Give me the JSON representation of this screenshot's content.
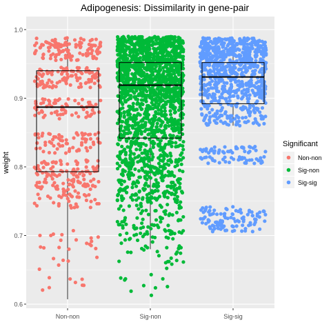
{
  "chart_data": {
    "type": "box",
    "title": "Adipogenesis: Dissimilarity in gene-pair",
    "xlabel": "",
    "ylabel": "weight",
    "ylim": [
      0.6,
      1.0
    ],
    "yticks": [
      0.6,
      0.7,
      0.8,
      0.9,
      1.0
    ],
    "yticklabels": [
      "0.6",
      "0.7",
      "0.8",
      "0.9",
      "1.0"
    ],
    "categories": [
      "Non-non",
      "Sig-non",
      "Sig-sig"
    ],
    "legend": {
      "title": "Significant",
      "position": "right",
      "entries": [
        "Non-non",
        "Sig-non",
        "Sig-sig"
      ]
    },
    "colors": {
      "Non-non": "#F8766D",
      "Sig-non": "#00BA38",
      "Sig-sig": "#619CFF",
      "panel": "#EBEBEB",
      "grid": "#FFFFFF"
    },
    "grid": true,
    "boxes": [
      {
        "name": "Non-non",
        "q1": 0.793,
        "median": 0.887,
        "q3": 0.94,
        "whisker_low": 0.607,
        "whisker_high": 0.987
      },
      {
        "name": "Sig-non",
        "q1": 0.842,
        "median": 0.919,
        "q3": 0.952,
        "whisker_low": 0.68,
        "whisker_high": 0.99
      },
      {
        "name": "Sig-sig",
        "q1": 0.892,
        "median": 0.931,
        "q3": 0.952,
        "whisker_low": 0.86,
        "whisker_high": 0.988
      }
    ],
    "jitter_points": [
      {
        "group": "Non-non",
        "bands": [
          {
            "y_min": 0.955,
            "y_max": 0.988,
            "count": 120
          },
          {
            "y_min": 0.915,
            "y_max": 0.945,
            "count": 100
          },
          {
            "y_min": 0.87,
            "y_max": 0.9,
            "count": 70
          },
          {
            "y_min": 0.82,
            "y_max": 0.85,
            "count": 70
          },
          {
            "y_min": 0.77,
            "y_max": 0.81,
            "count": 110
          },
          {
            "y_min": 0.74,
            "y_max": 0.77,
            "count": 45
          },
          {
            "y_min": 0.68,
            "y_max": 0.71,
            "count": 18
          },
          {
            "y_min": 0.61,
            "y_max": 0.67,
            "count": 14
          }
        ]
      },
      {
        "group": "Sig-non",
        "bands": [
          {
            "y_min": 0.95,
            "y_max": 0.99,
            "count": 520
          },
          {
            "y_min": 0.9,
            "y_max": 0.95,
            "count": 520
          },
          {
            "y_min": 0.85,
            "y_max": 0.9,
            "count": 320
          },
          {
            "y_min": 0.8,
            "y_max": 0.85,
            "count": 240
          },
          {
            "y_min": 0.75,
            "y_max": 0.8,
            "count": 180
          },
          {
            "y_min": 0.7,
            "y_max": 0.75,
            "count": 90
          },
          {
            "y_min": 0.66,
            "y_max": 0.7,
            "count": 35
          },
          {
            "y_min": 0.61,
            "y_max": 0.66,
            "count": 12
          }
        ]
      },
      {
        "group": "Sig-sig",
        "bands": [
          {
            "y_min": 0.95,
            "y_max": 0.988,
            "count": 380
          },
          {
            "y_min": 0.9,
            "y_max": 0.95,
            "count": 320
          },
          {
            "y_min": 0.86,
            "y_max": 0.9,
            "count": 130
          },
          {
            "y_min": 0.82,
            "y_max": 0.83,
            "count": 40
          },
          {
            "y_min": 0.805,
            "y_max": 0.815,
            "count": 35
          },
          {
            "y_min": 0.705,
            "y_max": 0.742,
            "count": 110
          }
        ]
      }
    ]
  }
}
